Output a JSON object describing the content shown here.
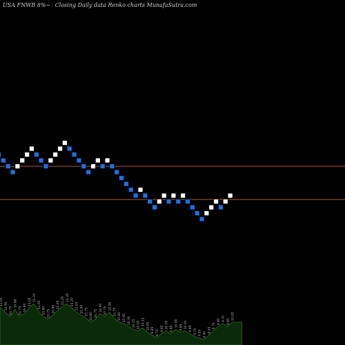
{
  "header": {
    "symbol": "USA FNWB 8%~",
    "description": "Closing Daily data  Renko  charts MunafaSutra.com"
  },
  "colors": {
    "background": "#000000",
    "up_brick": "#ffffff",
    "down_brick": "#1e6fe6",
    "level_line": "#b35a1f",
    "volume_fill": "#0a2a0a",
    "volume_stroke": "#2e6b1f",
    "volume_label": "#bbbbbb"
  },
  "chart_data": [
    {
      "type": "renko",
      "title": "USA FNWB 8%~ Closing Daily data Renko charts MunafaSutra.com",
      "bricks": [
        {
          "y": 11.05,
          "dir": "down"
        },
        {
          "y": 10.9,
          "dir": "down"
        },
        {
          "y": 10.75,
          "dir": "down"
        },
        {
          "y": 10.6,
          "dir": "down"
        },
        {
          "y": 10.75,
          "dir": "up"
        },
        {
          "y": 10.9,
          "dir": "up"
        },
        {
          "y": 11.05,
          "dir": "up"
        },
        {
          "y": 11.2,
          "dir": "up"
        },
        {
          "y": 11.05,
          "dir": "down"
        },
        {
          "y": 10.9,
          "dir": "down"
        },
        {
          "y": 10.75,
          "dir": "down"
        },
        {
          "y": 10.9,
          "dir": "up"
        },
        {
          "y": 11.05,
          "dir": "up"
        },
        {
          "y": 11.2,
          "dir": "up"
        },
        {
          "y": 11.35,
          "dir": "up"
        },
        {
          "y": 11.2,
          "dir": "down"
        },
        {
          "y": 11.05,
          "dir": "down"
        },
        {
          "y": 10.9,
          "dir": "down"
        },
        {
          "y": 10.75,
          "dir": "down"
        },
        {
          "y": 10.6,
          "dir": "down"
        },
        {
          "y": 10.75,
          "dir": "up"
        },
        {
          "y": 10.9,
          "dir": "up"
        },
        {
          "y": 10.75,
          "dir": "down"
        },
        {
          "y": 10.9,
          "dir": "up"
        },
        {
          "y": 10.75,
          "dir": "down"
        },
        {
          "y": 10.6,
          "dir": "down"
        },
        {
          "y": 10.45,
          "dir": "down"
        },
        {
          "y": 10.3,
          "dir": "down"
        },
        {
          "y": 10.15,
          "dir": "down"
        },
        {
          "y": 10.0,
          "dir": "down"
        },
        {
          "y": 10.15,
          "dir": "up"
        },
        {
          "y": 10.0,
          "dir": "down"
        },
        {
          "y": 9.85,
          "dir": "down"
        },
        {
          "y": 9.7,
          "dir": "down"
        },
        {
          "y": 9.85,
          "dir": "up"
        },
        {
          "y": 10.0,
          "dir": "up"
        },
        {
          "y": 9.85,
          "dir": "down"
        },
        {
          "y": 10.0,
          "dir": "up"
        },
        {
          "y": 9.85,
          "dir": "down"
        },
        {
          "y": 10.0,
          "dir": "up"
        },
        {
          "y": 9.85,
          "dir": "down"
        },
        {
          "y": 9.7,
          "dir": "down"
        },
        {
          "y": 9.55,
          "dir": "down"
        },
        {
          "y": 9.4,
          "dir": "down"
        },
        {
          "y": 9.55,
          "dir": "up"
        },
        {
          "y": 9.7,
          "dir": "up"
        },
        {
          "y": 9.85,
          "dir": "up"
        },
        {
          "y": 9.7,
          "dir": "down"
        },
        {
          "y": 9.85,
          "dir": "up"
        },
        {
          "y": 10.0,
          "dir": "up"
        }
      ],
      "levels": [
        10.75,
        9.9
      ],
      "volume": {
        "values": [
          52,
          46,
          40,
          50,
          40,
          44,
          52,
          58,
          48,
          40,
          36,
          42,
          48,
          54,
          58,
          52,
          46,
          42,
          38,
          32,
          36,
          44,
          40,
          46,
          38,
          32,
          30,
          26,
          22,
          20,
          24,
          18,
          14,
          10,
          16,
          20,
          16,
          22,
          18,
          20,
          16,
          12,
          10,
          8,
          14,
          20,
          26,
          30,
          26,
          32
        ],
        "labels": [
          "11.05",
          "10.90",
          "10.75",
          "10.60",
          "10.75",
          "10.90",
          "11.05",
          "11.20",
          "11.05",
          "10.90",
          "10.75",
          "10.90",
          "11.05",
          "11.20",
          "11.35",
          "11.20",
          "11.05",
          "10.90",
          "10.75",
          "10.60",
          "10.75",
          "10.90",
          "10.75",
          "10.90",
          "10.75",
          "10.60",
          "10.45",
          "10.30",
          "10.15",
          "10.00",
          "10.15",
          "10.00",
          "9.85",
          "9.70",
          "9.85",
          "10.00",
          "9.85",
          "10.00",
          "9.85",
          "10.00",
          "9.85",
          "9.70",
          "9.55",
          "9.40",
          "9.55",
          "9.70",
          "9.85",
          "9.70",
          "9.85",
          "10.00"
        ]
      }
    }
  ]
}
